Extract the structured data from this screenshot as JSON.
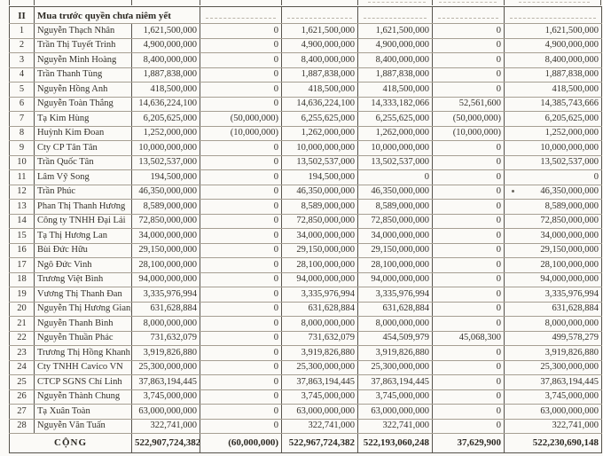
{
  "section_row": {
    "no": "II",
    "title": "Mua trước quyền chưa niêm yết"
  },
  "shareholders": [
    {
      "no": "1",
      "name": "Nguyễn Thạch Nhân",
      "values": [
        "1,621,500,000",
        "0",
        "1,621,500,000",
        "1,621,500,000",
        "0",
        "1,621,500,000"
      ]
    },
    {
      "no": "2",
      "name": "Trần Thị Tuyết Trinh",
      "values": [
        "4,900,000,000",
        "0",
        "4,900,000,000",
        "4,900,000,000",
        "0",
        "4,900,000,000"
      ]
    },
    {
      "no": "3",
      "name": "Nguyễn Minh Hoàng",
      "values": [
        "8,400,000,000",
        "0",
        "8,400,000,000",
        "8,400,000,000",
        "0",
        "8,400,000,000"
      ]
    },
    {
      "no": "4",
      "name": "Trần Thanh Tùng",
      "values": [
        "1,887,838,000",
        "0",
        "1,887,838,000",
        "1,887,838,000",
        "0",
        "1,887,838,000"
      ]
    },
    {
      "no": "5",
      "name": "Nguyễn Hồng Anh",
      "values": [
        "418,500,000",
        "0",
        "418,500,000",
        "418,500,000",
        "0",
        "418,500,000"
      ]
    },
    {
      "no": "6",
      "name": "Nguyễn Toàn Thắng",
      "values": [
        "14,636,224,100",
        "0",
        "14,636,224,100",
        "14,333,182,066",
        "52,561,600",
        "14,385,743,666"
      ]
    },
    {
      "no": "7",
      "name": "Tạ Kim Hùng",
      "values": [
        "6,205,625,000",
        "(50,000,000)",
        "6,255,625,000",
        "6,255,625,000",
        "(50,000,000)",
        "6,205,625,000"
      ]
    },
    {
      "no": "8",
      "name": "Huỳnh Kim Đoan",
      "values": [
        "1,252,000,000",
        "(10,000,000)",
        "1,262,000,000",
        "1,262,000,000",
        "(10,000,000)",
        "1,252,000,000"
      ]
    },
    {
      "no": "9",
      "name": "Cty CP Tân Tân",
      "values": [
        "10,000,000,000",
        "0",
        "10,000,000,000",
        "10,000,000,000",
        "0",
        "10,000,000,000"
      ]
    },
    {
      "no": "10",
      "name": "Trần Quốc Tân",
      "values": [
        "13,502,537,000",
        "0",
        "13,502,537,000",
        "13,502,537,000",
        "0",
        "13,502,537,000"
      ]
    },
    {
      "no": "11",
      "name": "Lâm Vỹ Song",
      "values": [
        "194,500,000",
        "0",
        "194,500,000",
        "0",
        "0",
        "0"
      ]
    },
    {
      "no": "12",
      "name": "Trần Phúc",
      "values": [
        "46,350,000,000",
        "0",
        "46,350,000,000",
        "46,350,000,000",
        "0",
        "46,350,000,000"
      ]
    },
    {
      "no": "13",
      "name": "Phan Thị Thanh Hương",
      "values": [
        "8,589,000,000",
        "0",
        "8,589,000,000",
        "8,589,000,000",
        "0",
        "8,589,000,000"
      ]
    },
    {
      "no": "14",
      "name": "Công ty TNHH Đại Lải",
      "values": [
        "72,850,000,000",
        "0",
        "72,850,000,000",
        "72,850,000,000",
        "0",
        "72,850,000,000"
      ]
    },
    {
      "no": "15",
      "name": "Tạ Thị Hương Lan",
      "values": [
        "34,000,000,000",
        "0",
        "34,000,000,000",
        "34,000,000,000",
        "0",
        "34,000,000,000"
      ]
    },
    {
      "no": "16",
      "name": "Bùi Đức Hữu",
      "values": [
        "29,150,000,000",
        "0",
        "29,150,000,000",
        "29,150,000,000",
        "0",
        "29,150,000,000"
      ]
    },
    {
      "no": "17",
      "name": "Ngô Đức Vinh",
      "values": [
        "28,100,000,000",
        "0",
        "28,100,000,000",
        "28,100,000,000",
        "0",
        "28,100,000,000"
      ]
    },
    {
      "no": "18",
      "name": "Trương Việt Bình",
      "values": [
        "94,000,000,000",
        "0",
        "94,000,000,000",
        "94,000,000,000",
        "0",
        "94,000,000,000"
      ]
    },
    {
      "no": "19",
      "name": "Vương Thị Thanh Đan",
      "values": [
        "3,335,976,994",
        "0",
        "3,335,976,994",
        "3,335,976,994",
        "0",
        "3,335,976,994"
      ]
    },
    {
      "no": "20",
      "name": "Nguyễn Thị Hương Giang",
      "values": [
        "631,628,884",
        "0",
        "631,628,884",
        "631,628,884",
        "0",
        "631,628,884"
      ]
    },
    {
      "no": "21",
      "name": "Nguyễn Thanh Bình",
      "values": [
        "8,000,000,000",
        "0",
        "8,000,000,000",
        "8,000,000,000",
        "0",
        "8,000,000,000"
      ]
    },
    {
      "no": "22",
      "name": "Nguyễn Thuần Phác",
      "values": [
        "731,632,079",
        "0",
        "731,632,079",
        "454,509,979",
        "45,068,300",
        "499,578,279"
      ]
    },
    {
      "no": "23",
      "name": "Trương Thị Hồng Khanh",
      "values": [
        "3,919,826,880",
        "0",
        "3,919,826,880",
        "3,919,826,880",
        "0",
        "3,919,826,880"
      ]
    },
    {
      "no": "24",
      "name": "Cty TNHH Cavico VN",
      "values": [
        "25,300,000,000",
        "0",
        "25,300,000,000",
        "25,300,000,000",
        "0",
        "25,300,000,000"
      ]
    },
    {
      "no": "25",
      "name": "CTCP SGNS Chí Linh",
      "values": [
        "37,863,194,445",
        "0",
        "37,863,194,445",
        "37,863,194,445",
        "0",
        "37,863,194,445"
      ]
    },
    {
      "no": "26",
      "name": "Nguyễn Thành Chung",
      "values": [
        "3,745,000,000",
        "0",
        "3,745,000,000",
        "3,745,000,000",
        "0",
        "3,745,000,000"
      ]
    },
    {
      "no": "27",
      "name": "Tạ Xuân Toàn",
      "values": [
        "63,000,000,000",
        "0",
        "63,000,000,000",
        "63,000,000,000",
        "0",
        "63,000,000,000"
      ]
    },
    {
      "no": "28",
      "name": "Nguyễn Văn Tuấn",
      "values": [
        "322,741,000",
        "0",
        "322,741,000",
        "322,741,000",
        "0",
        "322,741,000"
      ]
    }
  ],
  "total_row": {
    "label": "CỘNG",
    "values": [
      "522,907,724,382",
      "(60,000,000)",
      "522,967,724,382",
      "522,193,060,248",
      "37,629,900",
      "522,230,690,148"
    ]
  }
}
